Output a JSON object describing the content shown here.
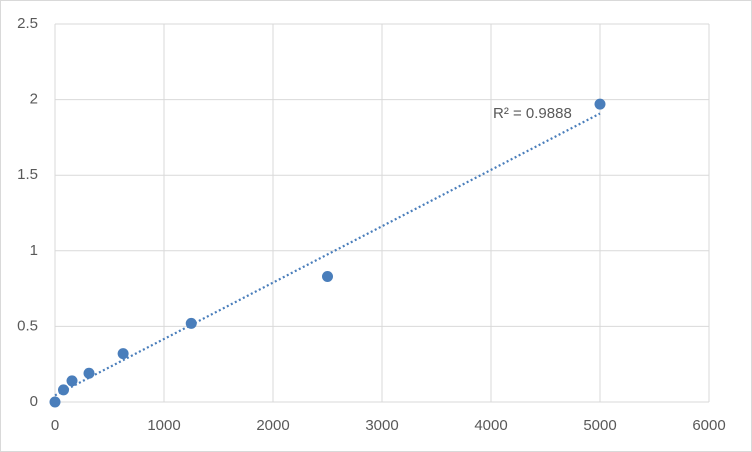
{
  "chart_data": {
    "type": "scatter",
    "x": [
      0,
      78,
      156,
      312,
      625,
      1250,
      2500,
      5000
    ],
    "values": [
      0,
      0.08,
      0.14,
      0.19,
      0.32,
      0.52,
      0.83,
      1.97
    ],
    "color": "#4a7ebb",
    "xlim": [
      0,
      6000
    ],
    "xticks": [
      0,
      1000,
      2000,
      3000,
      4000,
      5000,
      6000
    ],
    "ylim": [
      0,
      2.5
    ],
    "yticks": [
      0,
      0.5,
      1,
      1.5,
      2,
      2.5
    ],
    "grid": true,
    "trendline": "linear",
    "trendline_label": "R² = 0.9888"
  }
}
